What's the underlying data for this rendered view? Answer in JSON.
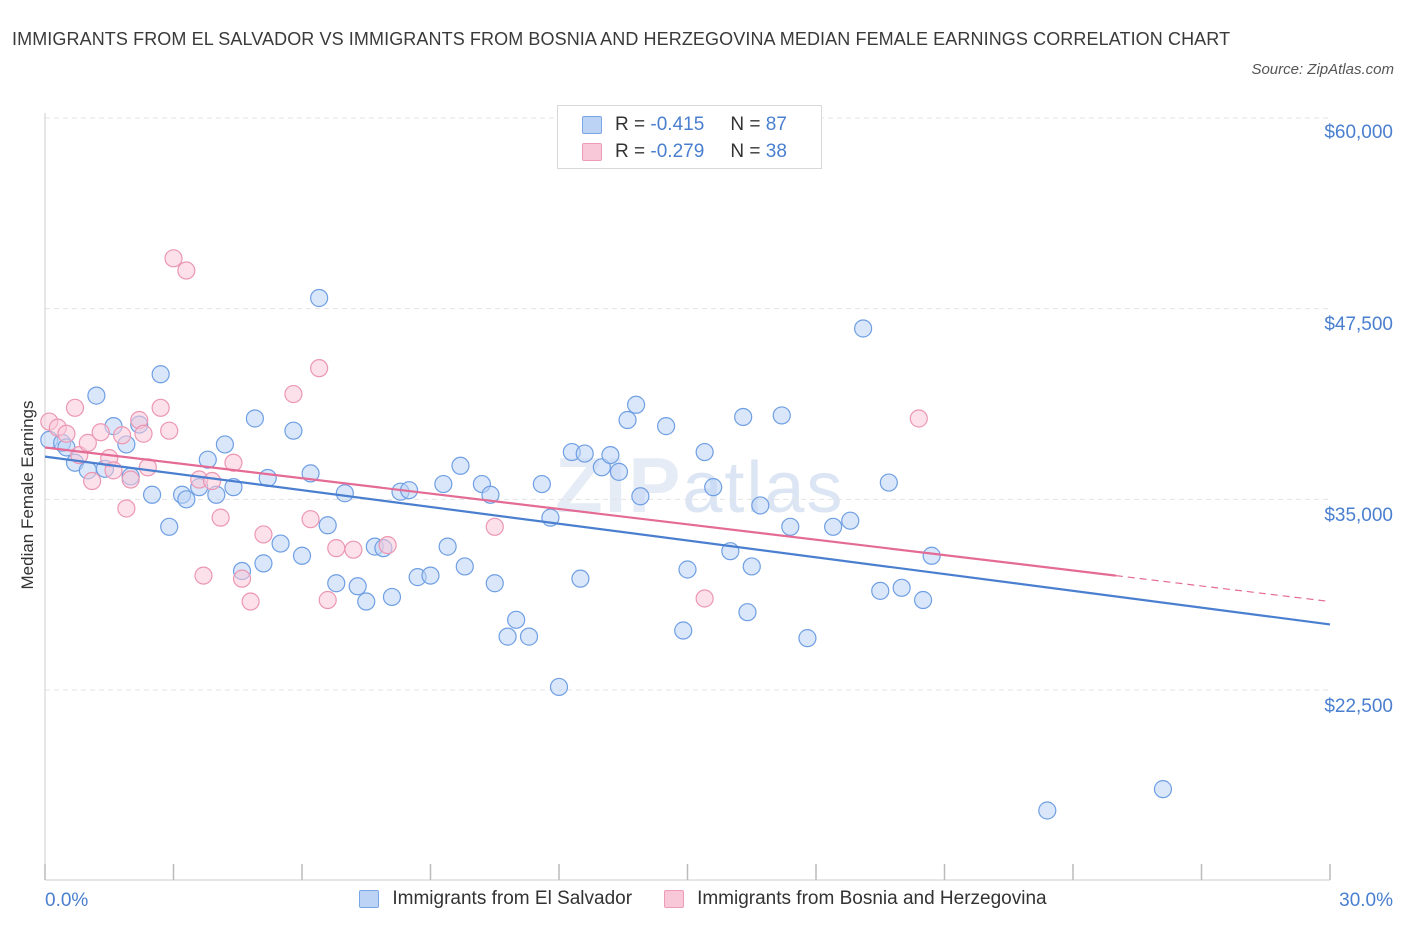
{
  "header": {
    "title": "IMMIGRANTS FROM EL SALVADOR VS IMMIGRANTS FROM BOSNIA AND HERZEGOVINA MEDIAN FEMALE EARNINGS CORRELATION CHART",
    "source": "Source: ZipAtlas.com"
  },
  "legend": {
    "series1": {
      "r_label": "R =",
      "r_value": "-0.415",
      "n_label": "N =",
      "n_value": "87"
    },
    "series2": {
      "r_label": "R =",
      "r_value": "-0.279",
      "n_label": "N =",
      "n_value": "38"
    }
  },
  "watermark": {
    "zip": "ZIP",
    "atlas": "atlas"
  },
  "colors": {
    "blue": "#4a7fd0",
    "pink": "#e46b95",
    "blue_fill": "#bcd3f5",
    "pink_fill": "#f9c8d8"
  },
  "chart_data": {
    "type": "scatter",
    "xlabel": "",
    "ylabel": "Median Female Earnings",
    "xlim": [
      0,
      30
    ],
    "ylim": [
      10000,
      62000
    ],
    "x_tick_labels": [
      "0.0%",
      "30.0%"
    ],
    "y_ticks": [
      {
        "value": 60000,
        "label": "$60,000"
      },
      {
        "value": 47500,
        "label": "$47,500"
      },
      {
        "value": 35000,
        "label": "$35,000"
      },
      {
        "value": 22500,
        "label": "$22,500"
      }
    ],
    "series": [
      {
        "name": "Immigrants from El Salvador",
        "color": "#4a7fd0",
        "trend": {
          "x0": 0,
          "y0": 37800,
          "x1": 30,
          "y1": 26800
        },
        "points": [
          [
            0.1,
            38900
          ],
          [
            0.4,
            38700
          ],
          [
            0.5,
            38400
          ],
          [
            0.7,
            37400
          ],
          [
            1.0,
            36900
          ],
          [
            1.2,
            41800
          ],
          [
            1.4,
            37000
          ],
          [
            1.6,
            39800
          ],
          [
            1.9,
            38600
          ],
          [
            2.0,
            36500
          ],
          [
            2.2,
            39900
          ],
          [
            2.5,
            35300
          ],
          [
            2.7,
            43200
          ],
          [
            2.9,
            33200
          ],
          [
            3.2,
            35300
          ],
          [
            3.3,
            35000
          ],
          [
            3.6,
            35800
          ],
          [
            3.8,
            37600
          ],
          [
            4.0,
            35300
          ],
          [
            4.2,
            38600
          ],
          [
            4.4,
            35800
          ],
          [
            4.6,
            30300
          ],
          [
            4.9,
            40300
          ],
          [
            5.1,
            30800
          ],
          [
            5.2,
            36400
          ],
          [
            5.5,
            32100
          ],
          [
            5.8,
            39500
          ],
          [
            6.0,
            31300
          ],
          [
            6.2,
            36700
          ],
          [
            6.4,
            48200
          ],
          [
            6.6,
            33300
          ],
          [
            6.8,
            29500
          ],
          [
            7.0,
            35400
          ],
          [
            7.3,
            29300
          ],
          [
            7.5,
            28300
          ],
          [
            7.7,
            31900
          ],
          [
            7.9,
            31800
          ],
          [
            8.1,
            28600
          ],
          [
            8.3,
            35500
          ],
          [
            8.5,
            35600
          ],
          [
            8.7,
            29900
          ],
          [
            9.0,
            30000
          ],
          [
            9.3,
            36000
          ],
          [
            9.4,
            31900
          ],
          [
            9.7,
            37200
          ],
          [
            9.8,
            30600
          ],
          [
            10.2,
            36000
          ],
          [
            10.4,
            35300
          ],
          [
            10.5,
            29500
          ],
          [
            10.8,
            26000
          ],
          [
            11.0,
            27100
          ],
          [
            11.3,
            26000
          ],
          [
            11.6,
            36000
          ],
          [
            11.8,
            33800
          ],
          [
            12.0,
            22700
          ],
          [
            12.3,
            38100
          ],
          [
            12.5,
            29800
          ],
          [
            12.6,
            38000
          ],
          [
            13.0,
            37100
          ],
          [
            13.2,
            37900
          ],
          [
            13.4,
            36800
          ],
          [
            13.6,
            40200
          ],
          [
            13.8,
            41200
          ],
          [
            13.9,
            35200
          ],
          [
            14.5,
            39800
          ],
          [
            14.9,
            26400
          ],
          [
            15.0,
            30400
          ],
          [
            15.4,
            38100
          ],
          [
            15.6,
            35800
          ],
          [
            16.0,
            31600
          ],
          [
            16.3,
            40400
          ],
          [
            16.4,
            27600
          ],
          [
            16.5,
            30600
          ],
          [
            16.7,
            34600
          ],
          [
            17.2,
            40500
          ],
          [
            17.4,
            33200
          ],
          [
            17.8,
            25900
          ],
          [
            18.4,
            33200
          ],
          [
            18.8,
            33600
          ],
          [
            19.1,
            46200
          ],
          [
            19.5,
            29000
          ],
          [
            19.7,
            36100
          ],
          [
            20.0,
            29200
          ],
          [
            20.5,
            28400
          ],
          [
            20.7,
            31300
          ],
          [
            23.4,
            14600
          ],
          [
            26.1,
            16000
          ]
        ]
      },
      {
        "name": "Immigrants from Bosnia and Herzegovina",
        "color": "#e46b95",
        "trend": {
          "x0": 0,
          "y0": 38400,
          "x1": 25.0,
          "y1": 30000
        },
        "trend_dashed": {
          "x0": 25.0,
          "y0": 30000,
          "x1": 30,
          "y1": 28300
        },
        "points": [
          [
            0.1,
            40100
          ],
          [
            0.3,
            39700
          ],
          [
            0.5,
            39300
          ],
          [
            0.7,
            41000
          ],
          [
            0.8,
            37900
          ],
          [
            1.0,
            38700
          ],
          [
            1.1,
            36200
          ],
          [
            1.3,
            39400
          ],
          [
            1.5,
            37700
          ],
          [
            1.6,
            36900
          ],
          [
            1.8,
            39200
          ],
          [
            1.9,
            34400
          ],
          [
            2.0,
            36300
          ],
          [
            2.2,
            40200
          ],
          [
            2.3,
            39300
          ],
          [
            2.4,
            37100
          ],
          [
            2.7,
            41000
          ],
          [
            2.9,
            39500
          ],
          [
            3.0,
            50800
          ],
          [
            3.3,
            50000
          ],
          [
            3.6,
            36300
          ],
          [
            3.7,
            30000
          ],
          [
            3.9,
            36200
          ],
          [
            4.1,
            33800
          ],
          [
            4.4,
            37400
          ],
          [
            4.6,
            29800
          ],
          [
            4.8,
            28300
          ],
          [
            5.1,
            32700
          ],
          [
            5.8,
            41900
          ],
          [
            6.2,
            33700
          ],
          [
            6.4,
            43600
          ],
          [
            6.6,
            28400
          ],
          [
            6.8,
            31800
          ],
          [
            7.2,
            31700
          ],
          [
            8.0,
            32000
          ],
          [
            10.5,
            33200
          ],
          [
            15.4,
            28500
          ],
          [
            20.4,
            40300
          ]
        ]
      }
    ]
  }
}
